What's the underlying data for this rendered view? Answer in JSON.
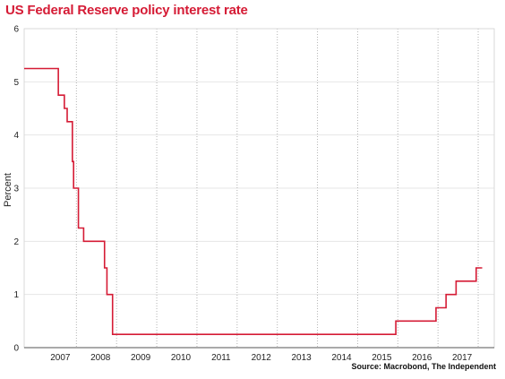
{
  "chart_data": {
    "type": "line",
    "title": "US Federal Reserve policy interest rate",
    "ylabel": "Percent",
    "xlabel": "",
    "source": "Source: Macrobond, The Independent",
    "xlim": [
      2006.2,
      2017.9
    ],
    "ylim": [
      0,
      6
    ],
    "yticks": [
      0,
      1,
      2,
      3,
      4,
      5,
      6
    ],
    "xtick_labels": [
      {
        "label": "2007",
        "year": 2007
      },
      {
        "label": "2008",
        "year": 2008
      },
      {
        "label": "2009",
        "year": 2009
      },
      {
        "label": "2010",
        "year": 2010
      },
      {
        "label": "2011",
        "year": 2011
      },
      {
        "label": "2012",
        "year": 2012
      },
      {
        "label": "2013",
        "year": 2013
      },
      {
        "label": "2014",
        "year": 2014
      },
      {
        "label": "2015",
        "year": 2015
      },
      {
        "label": "2016",
        "year": 2016
      },
      {
        "label": "2017",
        "year": 2017
      }
    ],
    "grid": true,
    "line_color": "#d51b35",
    "series": [
      {
        "name": "",
        "step": true,
        "points": [
          {
            "x": 2006.2,
            "y": 5.25
          },
          {
            "x": 2007.05,
            "y": 4.75
          },
          {
            "x": 2007.2,
            "y": 4.5
          },
          {
            "x": 2007.27,
            "y": 4.25
          },
          {
            "x": 2007.4,
            "y": 3.5
          },
          {
            "x": 2007.43,
            "y": 3.0
          },
          {
            "x": 2007.55,
            "y": 2.25
          },
          {
            "x": 2007.68,
            "y": 2.0
          },
          {
            "x": 2008.2,
            "y": 1.5
          },
          {
            "x": 2008.26,
            "y": 1.0
          },
          {
            "x": 2008.4,
            "y": 0.25
          },
          {
            "x": 2015.45,
            "y": 0.5
          },
          {
            "x": 2016.45,
            "y": 0.75
          },
          {
            "x": 2016.7,
            "y": 1.0
          },
          {
            "x": 2016.95,
            "y": 1.25
          },
          {
            "x": 2017.45,
            "y": 1.5
          },
          {
            "x": 2017.6,
            "y": 1.5
          }
        ]
      }
    ]
  }
}
